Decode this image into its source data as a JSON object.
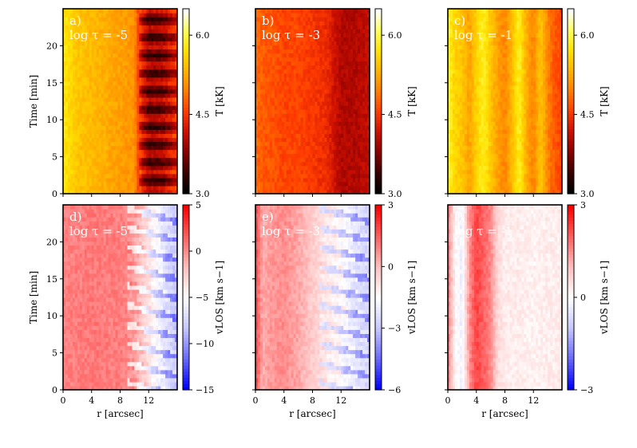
{
  "figure": {
    "rows": 2,
    "columns": 3
  },
  "colormaps": {
    "temperature": [
      "#000000",
      "#3a0000",
      "#8b0000",
      "#cc1000",
      "#ff3c00",
      "#ff7d00",
      "#ffb200",
      "#ffe100",
      "#ffff5a",
      "#ffffff"
    ],
    "velocity": [
      "#0000ff",
      "#6a6aff",
      "#c8c8ff",
      "#ffffff",
      "#ffc0c0",
      "#ff6060",
      "#ff0000"
    ]
  },
  "chart_data": [
    {
      "id": "a",
      "type": "heatmap",
      "label_letter": "a)",
      "label_tau": "log τ = -5",
      "quantity": "temperature",
      "unit": "kK",
      "colorbar_range": [
        3.0,
        6.5
      ],
      "colorbar_ticks": [
        "3.0",
        "4.5",
        "6.0"
      ],
      "colorbar_tick_values": [
        3.0,
        4.5,
        6.0
      ],
      "colorbar_label": "T [kK]",
      "x_range": [
        0,
        16
      ],
      "y_range": [
        0,
        25
      ],
      "x_ticks": [],
      "y_ticks": [
        "0",
        "5",
        "10",
        "15",
        "20"
      ],
      "y_tick_values": [
        0,
        5,
        10,
        15,
        20
      ],
      "ylabel": "Time [min]",
      "xlabel": "",
      "profile_r": [
        0,
        2,
        4,
        6,
        8,
        10,
        11,
        12,
        14,
        16
      ],
      "profile_value": [
        5.8,
        5.5,
        5.4,
        5.3,
        5.2,
        5.1,
        4.2,
        3.7,
        3.8,
        4.3
      ]
    },
    {
      "id": "b",
      "type": "heatmap",
      "label_letter": "b)",
      "label_tau": "log τ = -3",
      "quantity": "temperature",
      "unit": "kK",
      "colorbar_range": [
        3.0,
        6.5
      ],
      "colorbar_ticks": [
        "3.0",
        "4.5",
        "6.0"
      ],
      "colorbar_tick_values": [
        3.0,
        4.5,
        6.0
      ],
      "colorbar_label": "T [kK]",
      "x_range": [
        0,
        16
      ],
      "y_range": [
        0,
        25
      ],
      "x_ticks": [],
      "y_ticks": [],
      "y_tick_values": [],
      "ylabel": "",
      "xlabel": "",
      "profile_r": [
        0,
        2,
        4,
        6,
        8,
        10,
        11,
        12,
        14,
        16
      ],
      "profile_value": [
        4.8,
        4.7,
        4.6,
        4.6,
        4.5,
        4.4,
        4.2,
        4.0,
        4.0,
        4.1
      ]
    },
    {
      "id": "c",
      "type": "heatmap",
      "label_letter": "c)",
      "label_tau": "log τ = -1",
      "quantity": "temperature",
      "unit": "kK",
      "colorbar_range": [
        3.0,
        6.5
      ],
      "colorbar_ticks": [
        "3.0",
        "4.5",
        "6.0"
      ],
      "colorbar_tick_values": [
        3.0,
        4.5,
        6.0
      ],
      "colorbar_label": "T [kK]",
      "x_range": [
        0,
        16
      ],
      "y_range": [
        0,
        25
      ],
      "x_ticks": [],
      "y_ticks": [],
      "y_tick_values": [],
      "ylabel": "",
      "xlabel": "",
      "profile_r": [
        0,
        1,
        2,
        3,
        4,
        5,
        6,
        7,
        8,
        9,
        10,
        11,
        12,
        13,
        14,
        15,
        16
      ],
      "profile_value": [
        6.0,
        5.6,
        5.5,
        5.2,
        5.6,
        5.9,
        5.5,
        5.2,
        5.0,
        5.4,
        5.9,
        5.3,
        5.0,
        5.5,
        5.0,
        4.7,
        4.6
      ]
    },
    {
      "id": "d",
      "type": "heatmap",
      "label_letter": "d)",
      "label_tau": "log τ = -5",
      "quantity": "velocity",
      "unit": "km s^-1",
      "colorbar_range": [
        -15,
        5
      ],
      "colorbar_ticks": [
        "−15",
        "−10",
        "−5",
        "0",
        "5"
      ],
      "colorbar_tick_values": [
        -15,
        -10,
        -5,
        0,
        5
      ],
      "colorbar_label": "vLOS [km s−1]",
      "x_range": [
        0,
        16
      ],
      "y_range": [
        0,
        25
      ],
      "x_ticks": [
        "0",
        "4",
        "8",
        "12"
      ],
      "x_tick_values": [
        0,
        4,
        8,
        12
      ],
      "y_ticks": [
        "0",
        "5",
        "10",
        "15",
        "20"
      ],
      "y_tick_values": [
        0,
        5,
        10,
        15,
        20
      ],
      "ylabel": "Time [min]",
      "xlabel": "r [arcsec]",
      "profile_r": [
        0,
        4,
        8,
        10,
        12,
        14,
        16
      ],
      "profile_value": [
        0.5,
        0.8,
        0.6,
        0.2,
        -3,
        -6,
        -8
      ]
    },
    {
      "id": "e",
      "type": "heatmap",
      "label_letter": "e)",
      "label_tau": "log τ = -3",
      "quantity": "velocity",
      "unit": "km s^-1",
      "colorbar_range": [
        -6,
        3
      ],
      "colorbar_ticks": [
        "−6",
        "−3",
        "0",
        "3"
      ],
      "colorbar_tick_values": [
        -6,
        -3,
        0,
        3
      ],
      "colorbar_label": "vLOS [km s−1]",
      "x_range": [
        0,
        16
      ],
      "y_range": [
        0,
        25
      ],
      "x_ticks": [
        "0",
        "4",
        "8",
        "12"
      ],
      "x_tick_values": [
        0,
        4,
        8,
        12
      ],
      "y_ticks": [],
      "y_tick_values": [],
      "ylabel": "",
      "xlabel": "r [arcsec]",
      "profile_r": [
        0,
        1,
        2,
        4,
        6,
        8,
        10,
        12,
        14,
        16
      ],
      "profile_value": [
        2.0,
        0.3,
        0.6,
        0.8,
        0.4,
        -0.3,
        -0.8,
        -1.2,
        -2.0,
        -2.5
      ]
    },
    {
      "id": "f",
      "type": "heatmap",
      "label_letter": "f)",
      "label_tau": "log τ = -1",
      "quantity": "velocity",
      "unit": "km s^-1",
      "colorbar_range": [
        -3,
        3
      ],
      "colorbar_ticks": [
        "−3",
        "0",
        "3"
      ],
      "colorbar_tick_values": [
        -3,
        0,
        3
      ],
      "colorbar_label": "vLOS [km s−1]",
      "x_range": [
        0,
        16
      ],
      "y_range": [
        0,
        25
      ],
      "x_ticks": [
        "0",
        "4",
        "8",
        "12"
      ],
      "x_tick_values": [
        0,
        4,
        8,
        12
      ],
      "y_ticks": [],
      "y_tick_values": [],
      "ylabel": "",
      "xlabel": "r [arcsec]",
      "profile_r": [
        0,
        1,
        2,
        3,
        4,
        5,
        6,
        7,
        8,
        10,
        12,
        14,
        16
      ],
      "profile_value": [
        1.8,
        0.2,
        -0.3,
        1.5,
        2.3,
        2.0,
        1.6,
        0.6,
        0.3,
        0.3,
        0.2,
        0.3,
        0.3
      ]
    }
  ]
}
